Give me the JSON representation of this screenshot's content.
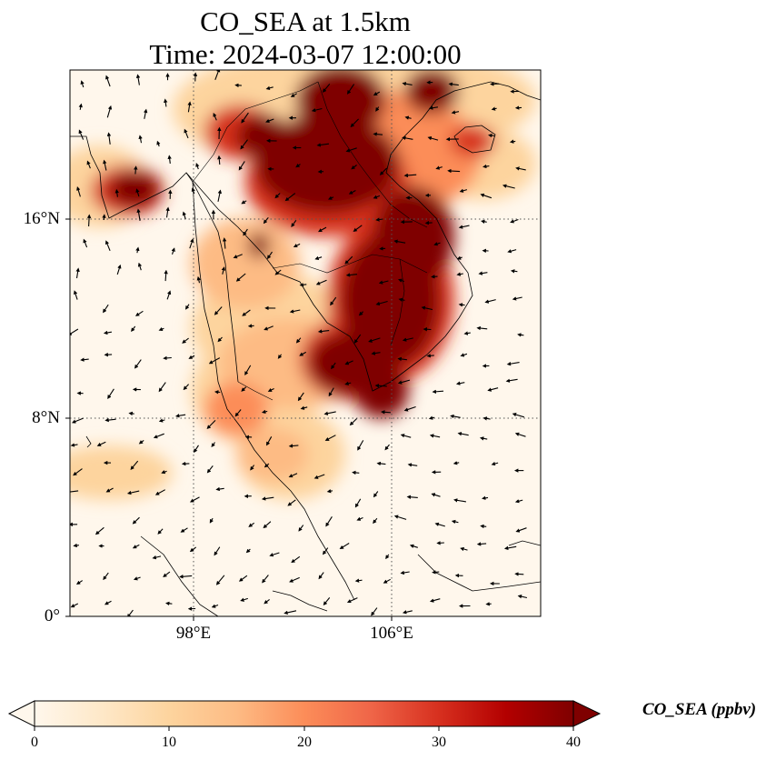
{
  "figure": {
    "title_line1": "CO_SEA at 1.5km",
    "title_line2": "Time: 2024-03-07 12:00:00"
  },
  "map": {
    "lat_ticks": [
      "16°N",
      "8°N",
      "0°"
    ],
    "lon_ticks": [
      "98°E",
      "106°E"
    ],
    "gridlines": "dotted",
    "wind_vectors": true
  },
  "colorbar": {
    "label": "CO_SEA (ppbv)",
    "ticks": [
      "0",
      "10",
      "20",
      "30",
      "40"
    ],
    "min": 0,
    "max": 40,
    "extend": "both",
    "colormap": "OrRd",
    "colors": [
      "#fff7ec",
      "#fee8c8",
      "#fdd49e",
      "#fdbb84",
      "#fc8d59",
      "#ef6548",
      "#d7301f",
      "#b30000",
      "#7f0000"
    ]
  }
}
